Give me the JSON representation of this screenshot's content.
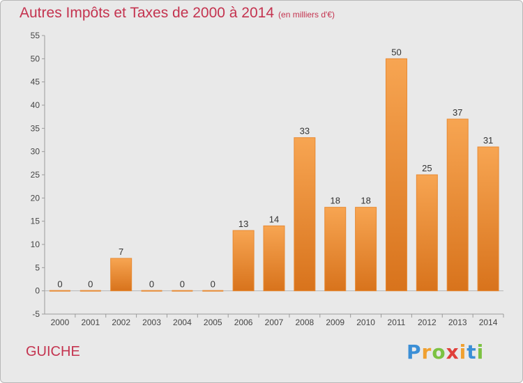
{
  "chart_data": {
    "type": "bar",
    "title": "Autres Impôts et Taxes de 2000 à 2014",
    "subtitle": "(en milliers d'€)",
    "categories": [
      "2000",
      "2001",
      "2002",
      "2003",
      "2004",
      "2005",
      "2006",
      "2007",
      "2008",
      "2009",
      "2010",
      "2011",
      "2012",
      "2013",
      "2014"
    ],
    "values": [
      0,
      0,
      7,
      0,
      0,
      0,
      13,
      14,
      33,
      18,
      18,
      50,
      25,
      37,
      31
    ],
    "data_labels": [
      "0",
      "0",
      "7",
      "0",
      "0",
      "0",
      "13",
      "14",
      "33",
      "18",
      "18",
      "50",
      "25",
      "37",
      "31"
    ],
    "yticks": [
      -5,
      0,
      5,
      10,
      15,
      20,
      25,
      30,
      35,
      40,
      45,
      50,
      55
    ],
    "ylim": [
      -5,
      55
    ],
    "grid": false,
    "bar_color": "#f0923a"
  },
  "commune": "GUICHE",
  "logo": {
    "letters": [
      "P",
      "r",
      "o",
      "x",
      "i",
      "t",
      "i"
    ],
    "colors": [
      "#3b8fd6",
      "#f0a030",
      "#7cc242",
      "#e0403a",
      "#f0a030",
      "#3b8fd6",
      "#7cc242"
    ]
  }
}
